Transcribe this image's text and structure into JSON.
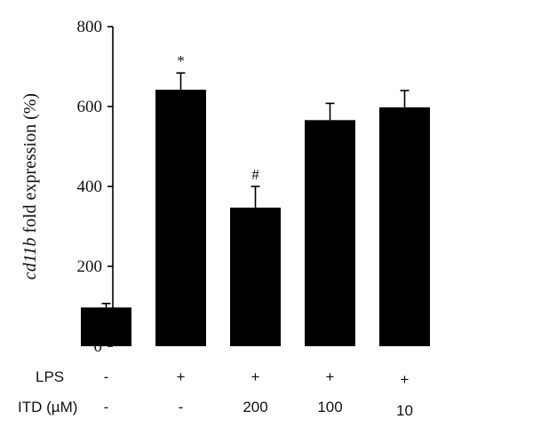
{
  "chart_data": {
    "type": "bar",
    "ylabel_italic": "cd11b",
    "ylabel_rest": " fold expression (%)",
    "ylim": [
      0,
      800
    ],
    "yticks": [
      0,
      200,
      400,
      600,
      800
    ],
    "values": [
      97,
      642,
      347,
      566,
      598
    ],
    "errors": [
      10,
      42,
      53,
      42,
      42
    ],
    "annotations": [
      "",
      "*",
      "#",
      "",
      ""
    ],
    "bar_color": "#000000",
    "grid": false,
    "treatment_rows": [
      {
        "name": "LPS",
        "values": [
          "-",
          "+",
          "+",
          "+",
          "+"
        ]
      },
      {
        "name": "ITD (µM)",
        "values": [
          "-",
          "-",
          "200",
          "100",
          "10"
        ]
      }
    ]
  }
}
